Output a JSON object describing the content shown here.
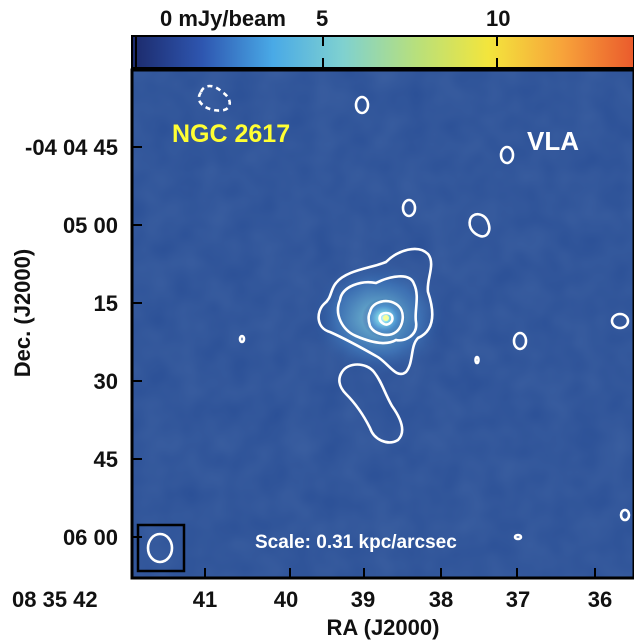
{
  "colorbar": {
    "unit_label": "0 mJy/beam",
    "tick_5": "5",
    "tick_10": "10",
    "colors": [
      "#1c2a6b",
      "#2e56b0",
      "#49a9e6",
      "#7fd1d0",
      "#b9e07a",
      "#f3e53c",
      "#f7a23a",
      "#ea5a2c"
    ]
  },
  "map": {
    "background_color": "#2a4f96",
    "object_label": "NGC 2617",
    "object_label_color": "#ffff33",
    "instrument_label": "VLA",
    "scale_label": "Scale: 0.31 kpc/arcsec"
  },
  "axes": {
    "xlabel": "RA (J2000)",
    "ylabel": "Dec. (J2000)",
    "x_ticks": [
      "08 35 42",
      "41",
      "40",
      "39",
      "38",
      "37",
      "36"
    ],
    "y_ticks": [
      "-04 04 45",
      "05 00",
      "15",
      "30",
      "45",
      "06 00"
    ]
  }
}
